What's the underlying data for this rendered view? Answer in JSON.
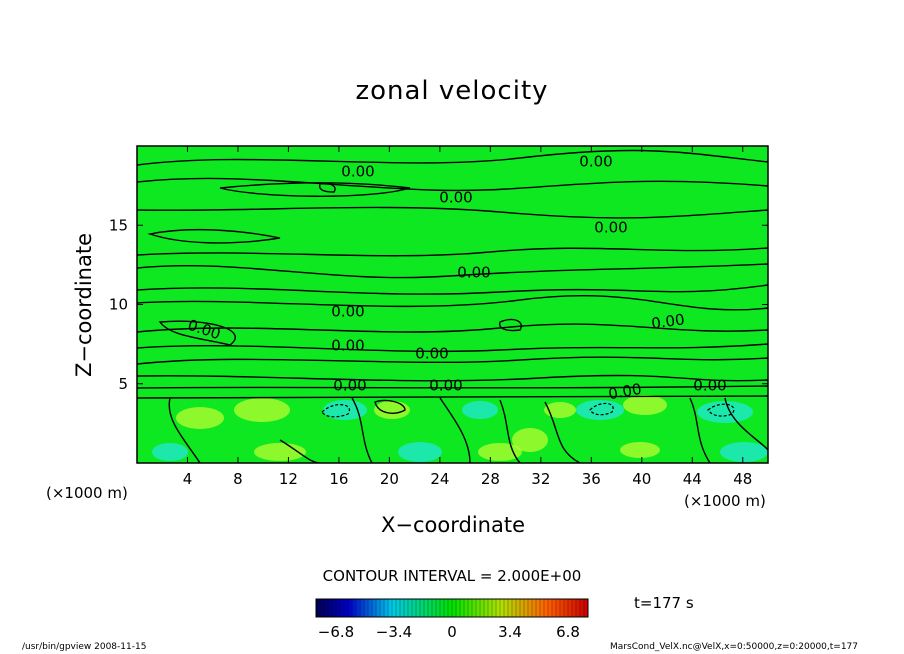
{
  "chart_data": {
    "type": "contour",
    "title": "zonal velocity",
    "xlabel": "X−coordinate",
    "ylabel": "Z−coordinate",
    "x_unit": "(×1000 m)",
    "z_unit": "(×1000 m)",
    "xlim": [
      0,
      50
    ],
    "ylim": [
      0,
      20
    ],
    "x_ticks": [
      "4",
      "8",
      "12",
      "16",
      "20",
      "24",
      "28",
      "32",
      "36",
      "40",
      "44",
      "48"
    ],
    "y_ticks": [
      "5",
      "10",
      "15"
    ],
    "contour_labels": [
      "0.00",
      "0.00",
      "0.00",
      "0.00",
      "0.00",
      "0.00",
      "0.00",
      "0.00",
      "0.00",
      "0.00",
      "0.00",
      "0.00",
      "0.00",
      "0.00"
    ],
    "contour_interval": "CONTOUR INTERVAL = 2.000E+00",
    "colorbar": {
      "ticks": [
        "−6.8",
        "−3.4",
        "0",
        "3.4",
        "6.8"
      ],
      "range": [
        -6.8,
        6.8
      ]
    },
    "time_label": "t=177 s",
    "colors": {
      "field_base": "#0ee820",
      "positive": "#b8ff30",
      "negative": "#20e8d8",
      "contour": "#000000"
    }
  },
  "footer": {
    "left": "/usr/bin/gpview  2008-11-15",
    "right": "MarsCond_VelX.nc@VelX,x=0:50000,z=0:20000,t=177"
  }
}
